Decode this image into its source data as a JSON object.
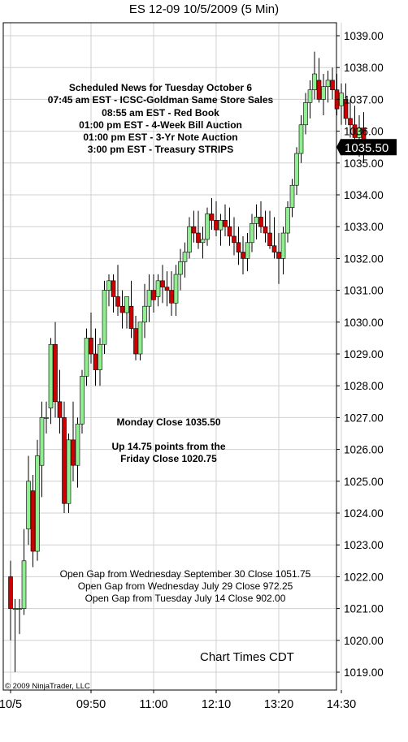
{
  "title": "ES 12-09  10/5/2009 (5 Min)",
  "chart_data": {
    "type": "candlestick",
    "instrument": "ES 12-09",
    "date": "10/5/2009",
    "interval": "5 Min",
    "y_range": [
      1018.7,
      1039.3
    ],
    "y_ticks": [
      "1019.00",
      "1020.00",
      "1021.00",
      "1022.00",
      "1023.00",
      "1024.00",
      "1025.00",
      "1026.00",
      "1027.00",
      "1028.00",
      "1029.00",
      "1030.00",
      "1031.00",
      "1032.00",
      "1033.00",
      "1034.00",
      "1035.00",
      "1036.00",
      "1037.00",
      "1038.00",
      "1039.00"
    ],
    "x_ticks": [
      {
        "label": "10/5",
        "bar": 0
      },
      {
        "label": "09:50",
        "bar": 18
      },
      {
        "label": "11:00",
        "bar": 32
      },
      {
        "label": "12:10",
        "bar": 46
      },
      {
        "label": "13:20",
        "bar": 60
      },
      {
        "label": "14:30",
        "bar": 74
      }
    ],
    "last_price": "1035.50",
    "ohlc": [
      [
        1022.0,
        1022.5,
        1020.0,
        1021.0
      ],
      [
        1021.0,
        1021.3,
        1019.0,
        1021.0
      ],
      [
        1021.0,
        1021.3,
        1020.2,
        1021.0
      ],
      [
        1021.0,
        1023.5,
        1020.8,
        1022.5
      ],
      [
        1023.5,
        1025.8,
        1023.0,
        1025.0
      ],
      [
        1024.7,
        1025.2,
        1022.3,
        1022.8
      ],
      [
        1022.8,
        1026.3,
        1022.5,
        1025.8
      ],
      [
        1025.5,
        1027.5,
        1024.5,
        1027.0
      ],
      [
        1027.0,
        1027.5,
        1026.5,
        1027.0
      ],
      [
        1027.3,
        1029.5,
        1026.8,
        1029.3
      ],
      [
        1029.3,
        1030.0,
        1027.0,
        1027.5
      ],
      [
        1027.5,
        1028.5,
        1026.5,
        1027.0
      ],
      [
        1027.0,
        1027.5,
        1024.0,
        1024.3
      ],
      [
        1024.3,
        1026.5,
        1024.0,
        1026.3
      ],
      [
        1026.3,
        1027.5,
        1025.0,
        1025.5
      ],
      [
        1025.5,
        1027.0,
        1024.8,
        1026.8
      ],
      [
        1026.8,
        1028.5,
        1026.5,
        1028.3
      ],
      [
        1028.3,
        1029.8,
        1028.0,
        1029.5
      ],
      [
        1029.5,
        1030.3,
        1028.7,
        1029.0
      ],
      [
        1029.0,
        1029.8,
        1028.0,
        1028.5
      ],
      [
        1028.5,
        1029.5,
        1028.0,
        1029.3
      ],
      [
        1029.3,
        1031.3,
        1029.0,
        1031.0
      ],
      [
        1031.0,
        1031.5,
        1030.5,
        1031.3
      ],
      [
        1031.3,
        1031.5,
        1030.3,
        1030.8
      ],
      [
        1030.8,
        1031.8,
        1030.2,
        1030.5
      ],
      [
        1030.5,
        1031.0,
        1029.8,
        1030.3
      ],
      [
        1030.3,
        1030.8,
        1029.8,
        1030.8
      ],
      [
        1030.5,
        1031.3,
        1029.5,
        1029.8
      ],
      [
        1029.8,
        1030.2,
        1028.8,
        1029.0
      ],
      [
        1029.0,
        1030.0,
        1028.8,
        1030.0
      ],
      [
        1030.0,
        1031.2,
        1029.5,
        1030.5
      ],
      [
        1030.5,
        1031.5,
        1030.0,
        1031.0
      ],
      [
        1031.0,
        1031.5,
        1030.3,
        1030.7
      ],
      [
        1030.8,
        1031.5,
        1030.5,
        1031.3
      ],
      [
        1031.3,
        1031.8,
        1030.6,
        1031.1
      ],
      [
        1031.1,
        1031.6,
        1030.5,
        1031.0
      ],
      [
        1031.0,
        1031.6,
        1030.2,
        1030.6
      ],
      [
        1030.6,
        1031.8,
        1030.2,
        1031.5
      ],
      [
        1031.5,
        1032.3,
        1031.0,
        1031.9
      ],
      [
        1031.9,
        1032.5,
        1031.4,
        1032.2
      ],
      [
        1032.2,
        1033.3,
        1032.0,
        1033.0
      ],
      [
        1033.0,
        1033.5,
        1032.5,
        1032.8
      ],
      [
        1032.8,
        1033.5,
        1032.3,
        1032.5
      ],
      [
        1032.5,
        1033.0,
        1032.0,
        1032.6
      ],
      [
        1032.6,
        1033.6,
        1032.4,
        1033.4
      ],
      [
        1033.4,
        1033.9,
        1032.9,
        1033.2
      ],
      [
        1033.2,
        1033.8,
        1032.7,
        1032.9
      ],
      [
        1032.9,
        1033.4,
        1032.4,
        1033.2
      ],
      [
        1033.2,
        1033.7,
        1032.7,
        1033.0
      ],
      [
        1033.0,
        1033.6,
        1032.4,
        1032.7
      ],
      [
        1032.7,
        1033.3,
        1032.1,
        1032.5
      ],
      [
        1032.5,
        1033.0,
        1031.8,
        1032.2
      ],
      [
        1032.2,
        1032.7,
        1031.5,
        1032.0
      ],
      [
        1032.0,
        1032.8,
        1031.6,
        1032.5
      ],
      [
        1032.5,
        1033.4,
        1032.2,
        1033.1
      ],
      [
        1033.1,
        1033.7,
        1032.6,
        1033.3
      ],
      [
        1033.3,
        1033.8,
        1032.8,
        1033.0
      ],
      [
        1033.0,
        1033.5,
        1032.5,
        1032.8
      ],
      [
        1032.8,
        1033.5,
        1032.3,
        1032.4
      ],
      [
        1032.4,
        1033.3,
        1032.0,
        1032.2
      ],
      [
        1032.2,
        1032.8,
        1031.2,
        1032.0
      ],
      [
        1032.0,
        1033.0,
        1031.5,
        1032.8
      ],
      [
        1032.8,
        1033.8,
        1032.5,
        1033.6
      ],
      [
        1033.6,
        1034.5,
        1033.3,
        1034.3
      ],
      [
        1034.3,
        1035.5,
        1034.0,
        1035.3
      ],
      [
        1035.3,
        1036.5,
        1035.0,
        1036.2
      ],
      [
        1036.2,
        1037.2,
        1035.9,
        1036.9
      ],
      [
        1036.9,
        1037.6,
        1036.4,
        1037.3
      ],
      [
        1037.3,
        1038.5,
        1037.0,
        1037.8
      ],
      [
        1037.6,
        1038.3,
        1036.9,
        1037.0
      ],
      [
        1037.0,
        1037.8,
        1036.5,
        1037.4
      ],
      [
        1037.4,
        1037.9,
        1036.9,
        1037.6
      ],
      [
        1037.6,
        1038.0,
        1037.0,
        1037.3
      ],
      [
        1037.3,
        1037.8,
        1036.5,
        1036.7
      ],
      [
        1036.8,
        1037.5,
        1036.2,
        1037.2
      ],
      [
        1037.0,
        1037.5,
        1036.2,
        1036.4
      ],
      [
        1036.4,
        1037.0,
        1035.8,
        1036.2
      ],
      [
        1036.2,
        1036.8,
        1035.4,
        1035.8
      ],
      [
        1035.8,
        1036.5,
        1035.2,
        1036.1
      ],
      [
        1036.1,
        1036.6,
        1035.0,
        1035.5
      ]
    ]
  },
  "news": [
    "Scheduled News for Tuesday October 6",
    "07:45 am EST - ICSC-Goldman Same Store Sales",
    "08:55 am EST - Red Book",
    "01:00 pm EST - 4-Week Bill Auction",
    "01:00 pm EST - 3-Yr Note Auction",
    "3:00 pm EST - Treasury STRIPS"
  ],
  "monday_close": "Monday Close 1035.50",
  "up_points_line1": "Up 14.75 points from the",
  "up_points_line2": "Friday Close 1020.75",
  "gaps": [
    "Open Gap from Wednesday September 30 Close 1051.75",
    "Open Gap from Wednesday July 29 Close 972.25",
    "Open Gap from Tuesday July 14 Close 902.00"
  ],
  "chart_times": "Chart Times CDT",
  "copyright": "© 2009 NinjaTrader, LLC",
  "colors": {
    "up": "#90ee90",
    "down": "#cc0000",
    "outline": "#000000",
    "grid": "#d0d0d0",
    "last_price_bg": "#000000",
    "last_price_fg": "#ffffff"
  }
}
